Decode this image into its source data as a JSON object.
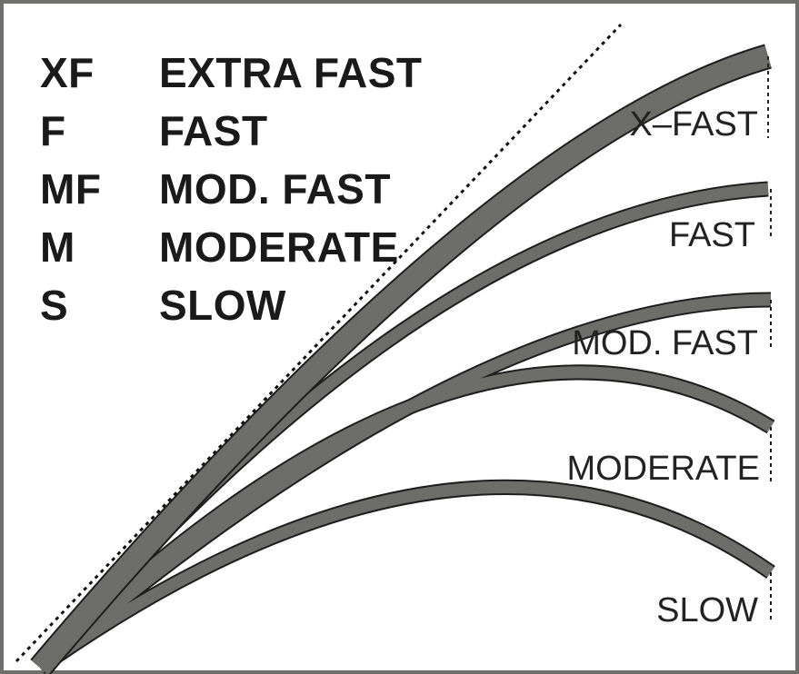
{
  "legend": {
    "items": [
      {
        "abbr": "XF",
        "full": "EXTRA FAST"
      },
      {
        "abbr": "F",
        "full": "FAST"
      },
      {
        "abbr": "MF",
        "full": "MOD. FAST"
      },
      {
        "abbr": "M",
        "full": "MODERATE"
      },
      {
        "abbr": "S",
        "full": "SLOW"
      }
    ]
  },
  "curves": {
    "xfast": "X–FAST",
    "fast": "FAST",
    "modfast": "MOD. FAST",
    "moderate": "MODERATE",
    "slow": "SLOW"
  },
  "colors": {
    "rod": "#6d6d69",
    "outline": "#1e1e1e",
    "frame": "#6f6f6b"
  }
}
